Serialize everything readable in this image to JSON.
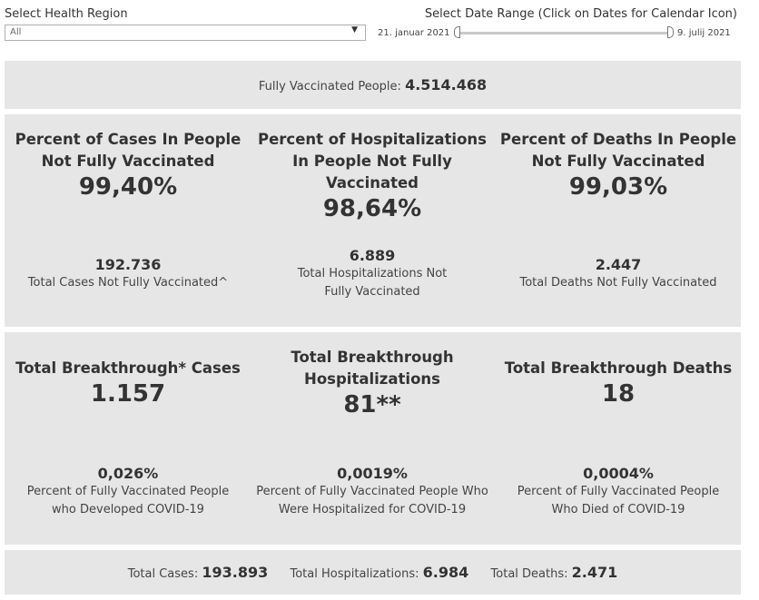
{
  "filters": {
    "region_label": "Select Health Region",
    "region_value": "All",
    "date_label": "Select Date Range (Click on Dates for Calendar Icon)",
    "date_start": "21. januar 2021",
    "date_end": "9. julij 2021"
  },
  "summary": {
    "label": "Fully Vaccinated People:",
    "value": "4.514.468"
  },
  "not_vaccinated": [
    {
      "title": "Percent of Cases In People Not Fully Vaccinated",
      "percent": "99,40%",
      "count": "192.736",
      "desc": "Total Cases Not Fully Vaccinated^"
    },
    {
      "title": "Percent of Hospitalizations In People Not Fully Vaccinated",
      "percent": "98,64%",
      "count": "6.889",
      "desc": "Total Hospitalizations Not Fully Vaccinated"
    },
    {
      "title": "Percent of Deaths In People Not Fully Vaccinated",
      "percent": "99,03%",
      "count": "2.447",
      "desc": "Total Deaths Not Fully Vaccinated"
    }
  ],
  "breakthrough": [
    {
      "title": "Total Breakthrough* Cases",
      "value": "1.157",
      "percent": "0,026%",
      "desc": "Percent of Fully Vaccinated People who Developed COVID-19"
    },
    {
      "title": "Total Breakthrough Hospitalizations",
      "value": "81**",
      "percent": "0,0019%",
      "desc": "Percent of Fully Vaccinated People Who Were Hospitalized for COVID-19"
    },
    {
      "title": "Total Breakthrough Deaths",
      "value": "18",
      "percent": "0,0004%",
      "desc": "Percent of Fully Vaccinated People Who Died of COVID-19"
    }
  ],
  "totals": {
    "cases_label": "Total Cases:",
    "cases_value": "193.893",
    "hosp_label": "Total Hospitalizations:",
    "hosp_value": "6.984",
    "deaths_label": "Total Deaths:",
    "deaths_value": "2.471"
  }
}
